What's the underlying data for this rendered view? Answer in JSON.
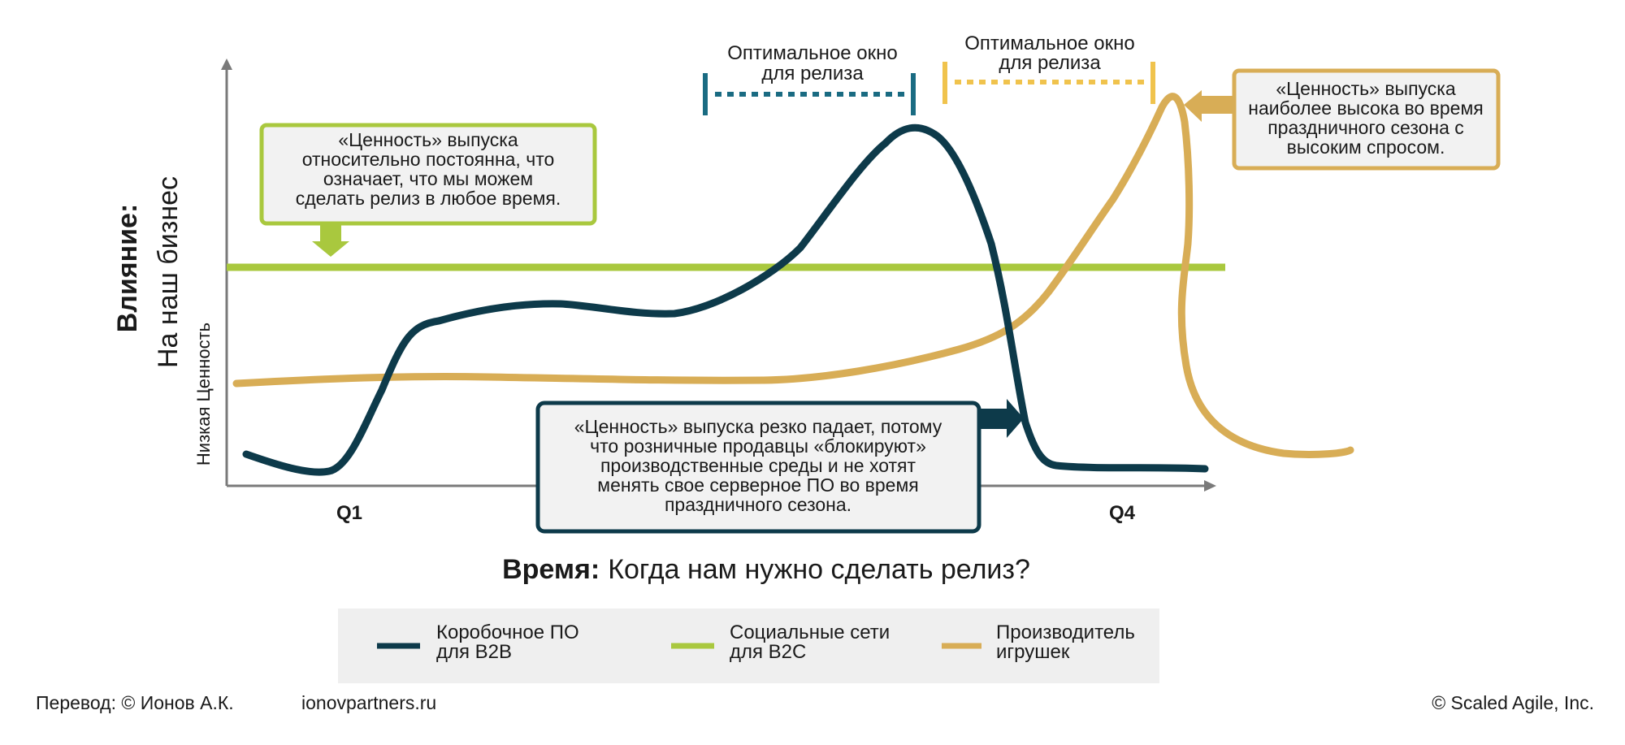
{
  "y_axis": {
    "title_bold": "Влияние:",
    "title_regular": "На наш бизнес",
    "low_label": "Низкая Ценность"
  },
  "x_axis": {
    "title_bold": "Время:",
    "title_regular": "Когда нам нужно сделать релиз?",
    "tick_q1": "Q1",
    "tick_q4": "Q4"
  },
  "windows": {
    "blue": {
      "line1": "Оптимальное окно",
      "line2": "для релиза"
    },
    "gold": {
      "line1": "Оптимальное окно",
      "line2": "для релиза"
    }
  },
  "callouts": {
    "green": [
      "«Ценность» выпуска",
      "относительно постоянна, что",
      "означает, что мы можем",
      "сделать релиз в любое время."
    ],
    "gold": [
      "«Ценность» выпуска",
      "наиболее высока во время",
      "праздничного сезона с",
      "высоким спросом."
    ],
    "navy": [
      "«Ценность» выпуска резко падает, потому",
      "что розничные продавцы «блокируют»",
      "производственные среды и не хотят",
      "менять свое серверное ПО во время",
      "праздничного сезона."
    ]
  },
  "legend": {
    "navy": [
      "Коробочное ПО",
      "для B2B"
    ],
    "green": [
      "Социальные сети",
      "для B2C"
    ],
    "gold": [
      "Производитель",
      "игрушек"
    ]
  },
  "footer": {
    "translation": "Перевод: © Ионов А.К.",
    "site": "ionovpartners.ru",
    "copyright": "© Scaled Agile,  Inc."
  },
  "colors": {
    "navy": "#0d3a4a",
    "green": "#a9c83e",
    "gold": "#d8ad56",
    "teal": "#1a6b82",
    "yellow": "#f0c34d",
    "axis": "#7a7a7a",
    "box_fill": "#f2f2f2",
    "legend_fill": "#efefef"
  }
}
